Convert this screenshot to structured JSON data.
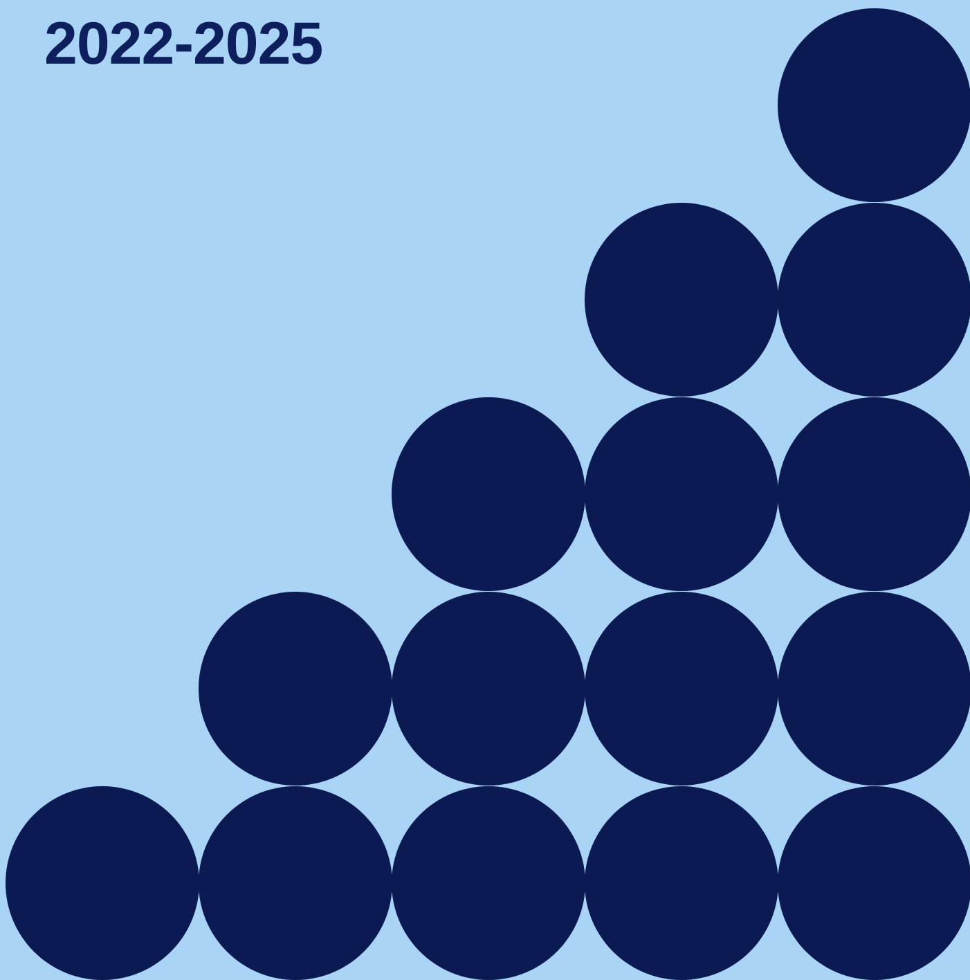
{
  "cover": {
    "title": "2022-2025"
  },
  "colors": {
    "background": "#a9d4f5",
    "title": "#0d1f5c",
    "dots": "#0b1a52"
  },
  "pattern": {
    "shape": "circle",
    "rows": [
      1,
      2,
      3,
      4,
      5
    ],
    "alignment": "right"
  }
}
